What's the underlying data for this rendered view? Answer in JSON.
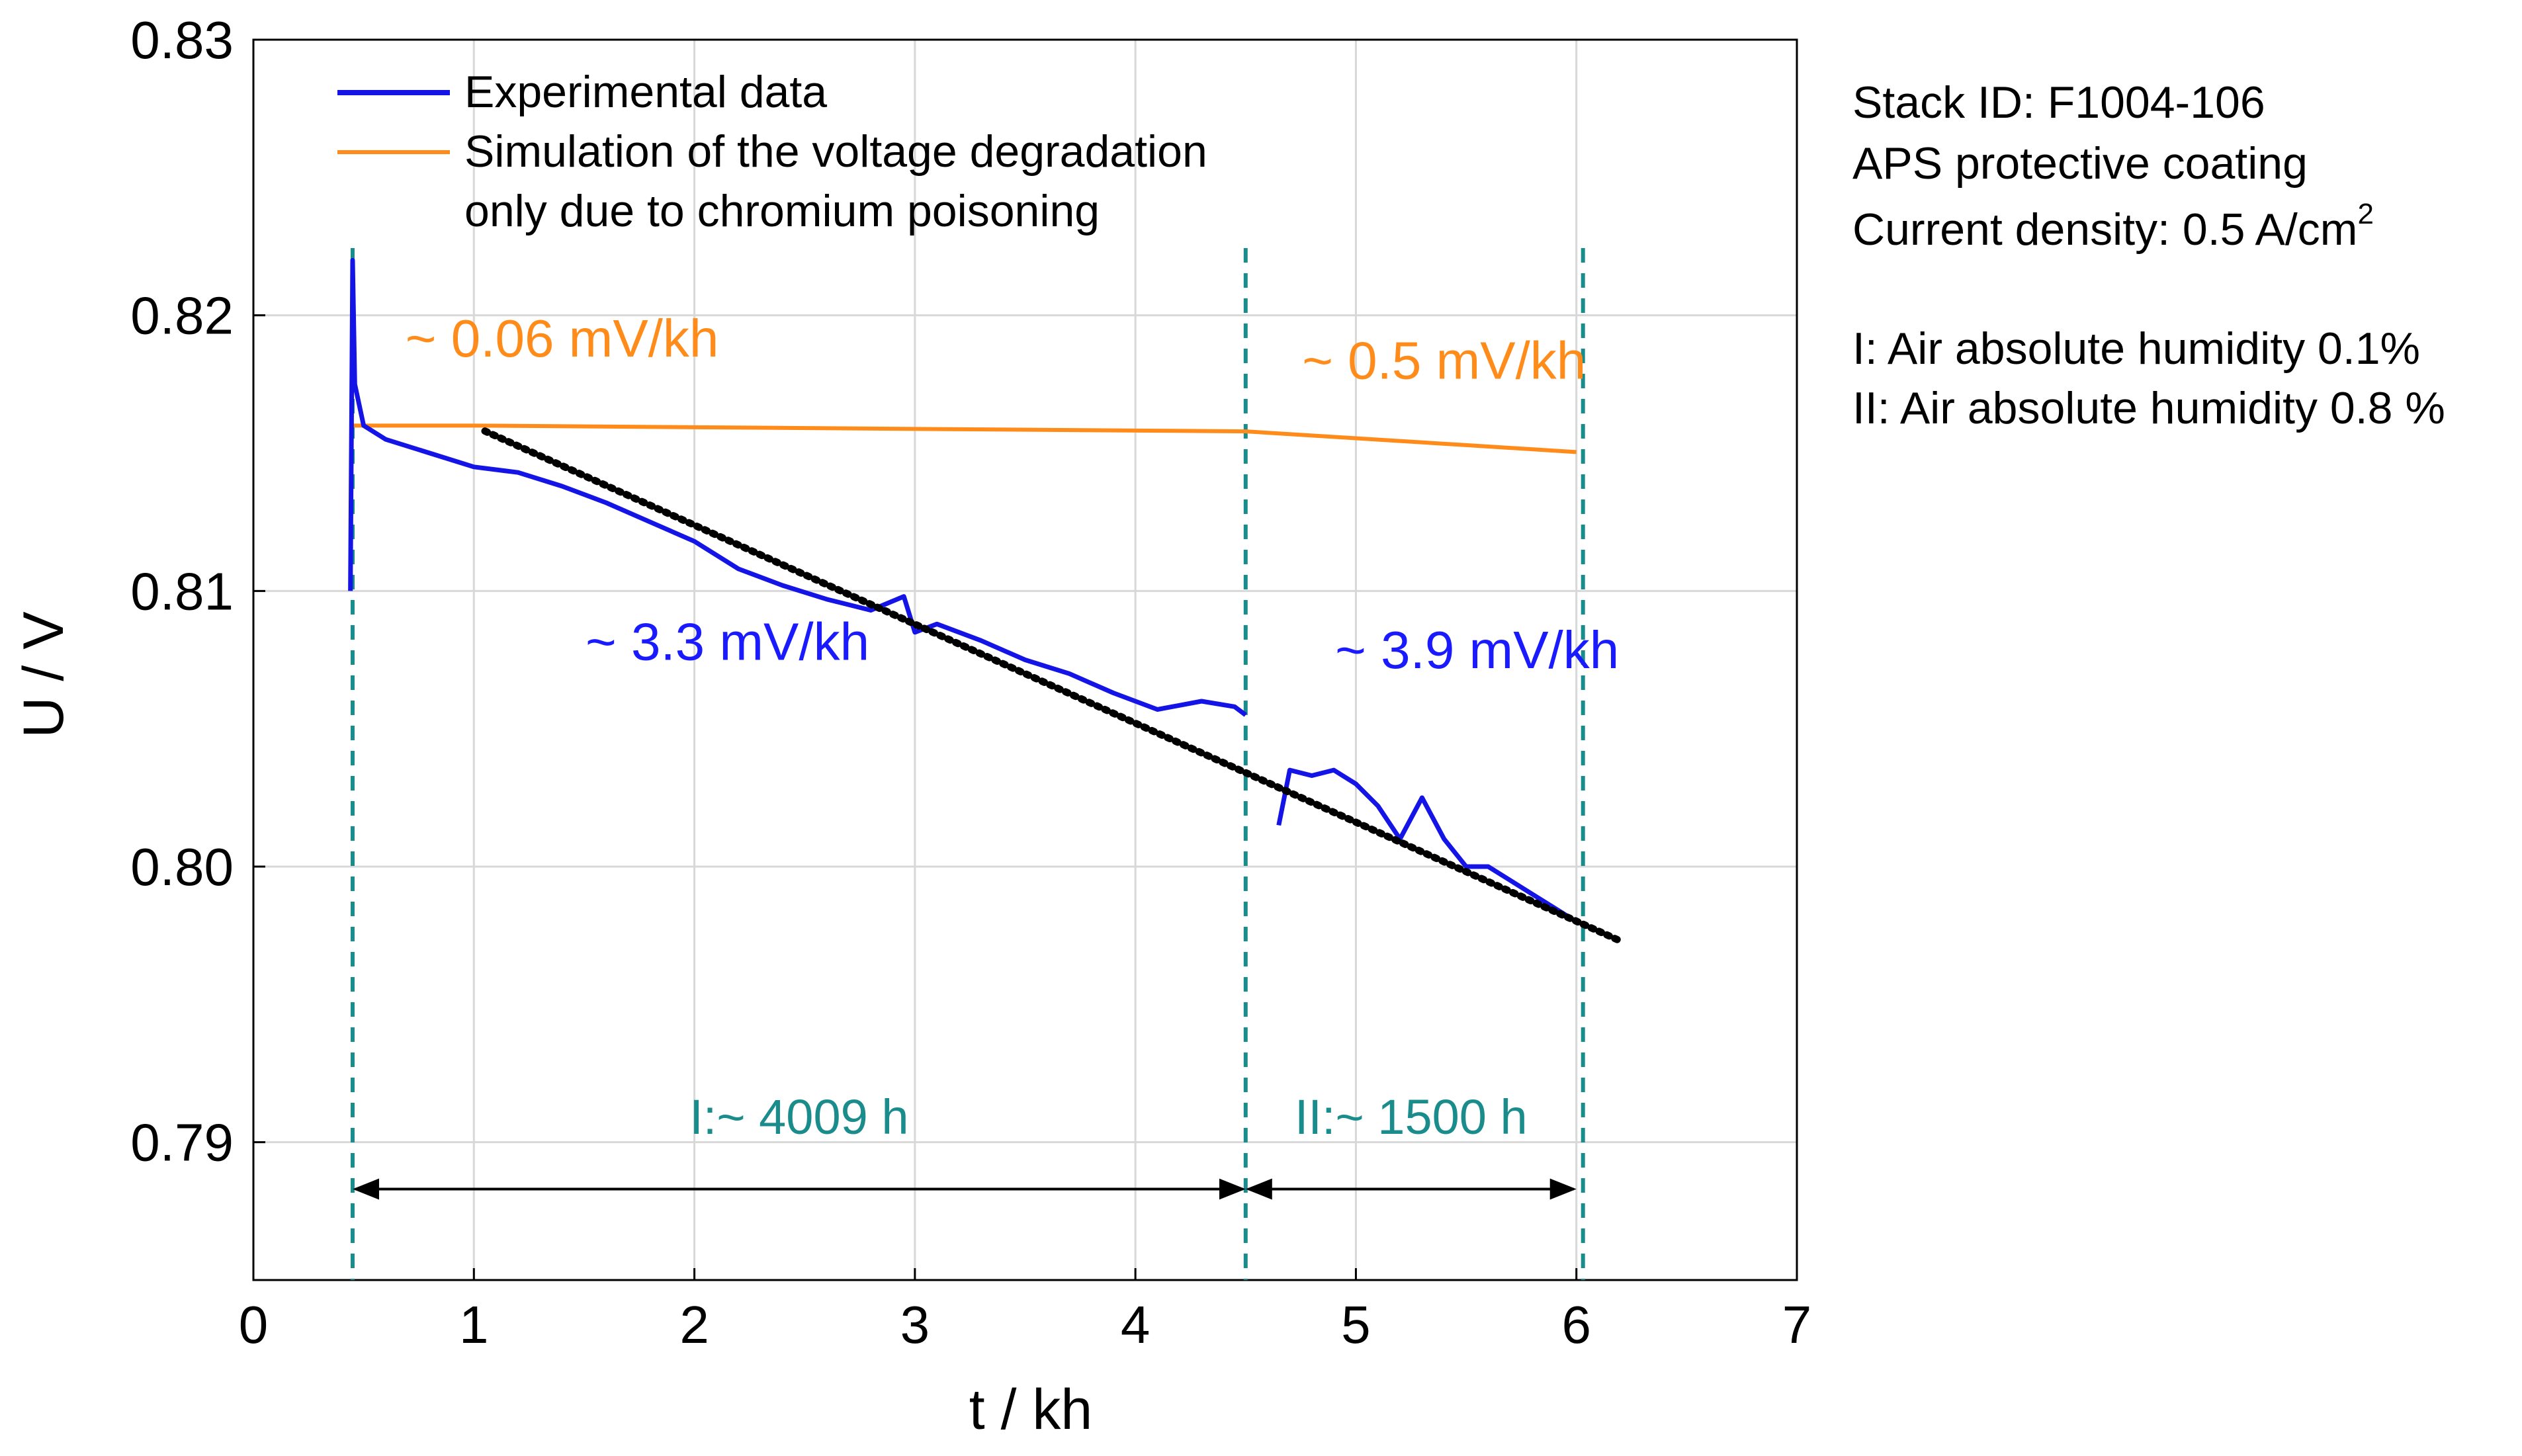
{
  "chart_data": {
    "type": "line",
    "xlabel": "t / kh",
    "ylabel": "U / V",
    "xlim": [
      0,
      7
    ],
    "ylim": [
      0.785,
      0.83
    ],
    "x_ticks": [
      "0",
      "1",
      "2",
      "3",
      "4",
      "5",
      "6",
      "7"
    ],
    "y_ticks": [
      "0.79",
      "0.80",
      "0.81",
      "0.82",
      "0.83"
    ],
    "y_tick_values": [
      0.79,
      0.8,
      0.81,
      0.82,
      0.83
    ],
    "grid": true,
    "legend_position": "top-left",
    "series": [
      {
        "name": "Experimental data",
        "color": "#1414e6",
        "segments": [
          {
            "x": [
              0.44,
              0.45,
              0.46,
              0.5,
              0.6,
              0.8,
              1.0,
              1.2,
              1.4,
              1.6,
              1.8,
              2.0,
              2.2,
              2.4,
              2.6,
              2.8,
              2.95,
              3.0,
              3.1,
              3.3,
              3.5,
              3.7,
              3.9,
              4.1,
              4.3,
              4.45,
              4.5
            ],
            "y": [
              0.81,
              0.822,
              0.8175,
              0.816,
              0.8155,
              0.815,
              0.8145,
              0.8143,
              0.8138,
              0.8132,
              0.8125,
              0.8118,
              0.8108,
              0.8102,
              0.8097,
              0.8093,
              0.8098,
              0.8085,
              0.8088,
              0.8082,
              0.8075,
              0.807,
              0.8063,
              0.8057,
              0.806,
              0.8058,
              0.8055
            ]
          },
          {
            "x": [
              4.65,
              4.7,
              4.8,
              4.9,
              5.0,
              5.1,
              5.2,
              5.3,
              5.4,
              5.5,
              5.6,
              5.7,
              5.8,
              5.9,
              6.0
            ],
            "y": [
              0.8015,
              0.8035,
              0.8033,
              0.8035,
              0.803,
              0.8022,
              0.801,
              0.8025,
              0.801,
              0.8,
              0.8,
              0.7995,
              0.799,
              0.7985,
              0.798
            ]
          }
        ]
      },
      {
        "name": "Simulation of the voltage degradation only due to chromium poisoning",
        "legend_lines": [
          "Simulation of the voltage degradation",
          "only due to chromium poisoning"
        ],
        "color": "#ff8c1a",
        "x": [
          0.44,
          1.0,
          2.0,
          3.0,
          4.0,
          4.5,
          5.0,
          5.5,
          6.0
        ],
        "y": [
          0.816,
          0.816,
          0.81594,
          0.81588,
          0.81582,
          0.81579,
          0.81554,
          0.81529,
          0.81504
        ]
      },
      {
        "name": "linear fit",
        "style": "dotted",
        "color": "#000000",
        "x": [
          1.05,
          6.2
        ],
        "y": [
          0.8158,
          0.7973
        ]
      }
    ],
    "vlines": [
      {
        "x": 0.45,
        "color": "#1a8c8c",
        "style": "dashed"
      },
      {
        "x": 4.5,
        "color": "#1a8c8c",
        "style": "dashed"
      },
      {
        "x": 6.03,
        "color": "#1a8c8c",
        "style": "dashed"
      }
    ],
    "spans": [
      {
        "label": "I:~ 4009 h",
        "from": 0.45,
        "to": 4.5,
        "arrow_y": 0.7883,
        "label_y": 0.7903
      },
      {
        "label": "II:~ 1500 h",
        "from": 4.5,
        "to": 6.0,
        "arrow_y": 0.7883,
        "label_y": 0.7903
      }
    ],
    "annotations": [
      {
        "text": "~ 0.06 mV/kh",
        "color": "#ff8c1a",
        "x": 1.4,
        "y": 0.8185
      },
      {
        "text": "~ 0.5 mV/kh",
        "color": "#ff8c1a",
        "x": 5.4,
        "y": 0.8177
      },
      {
        "text": "~ 3.3 mV/kh",
        "color": "#1a1aff",
        "x": 2.15,
        "y": 0.8075
      },
      {
        "text": "~ 3.9 mV/kh",
        "color": "#1a1aff",
        "x": 5.55,
        "y": 0.8072
      }
    ]
  },
  "side_info": {
    "stack_id": "Stack ID: F1004-106",
    "coating": "APS protective coating",
    "current_density": "Current density: 0.5 A/cm",
    "current_density_sup": "2",
    "humidity_1": "I: Air absolute humidity 0.1%",
    "humidity_2": "II: Air absolute humidity 0.8 %"
  }
}
